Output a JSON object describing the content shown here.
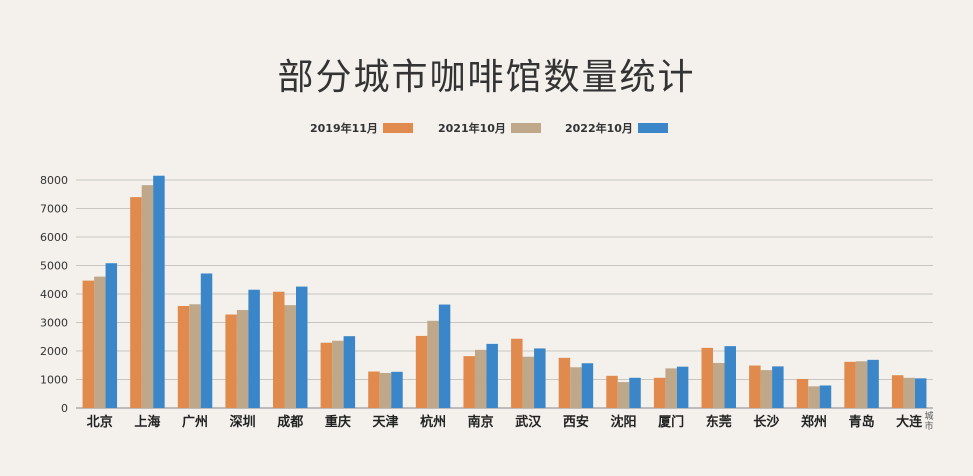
{
  "chart_data": {
    "type": "bar",
    "title": "部分城市咖啡馆数量统计",
    "xlabel": "城市",
    "ylabel": "",
    "ylim": [
      0,
      8000
    ],
    "yticks": [
      0,
      1000,
      2000,
      3000,
      4000,
      5000,
      6000,
      7000,
      8000
    ],
    "grid": true,
    "legend_position": "top-center",
    "categories": [
      "北京",
      "上海",
      "广州",
      "深圳",
      "成都",
      "重庆",
      "天津",
      "杭州",
      "南京",
      "武汉",
      "西安",
      "沈阳",
      "厦门",
      "东莞",
      "长沙",
      "郑州",
      "青岛",
      "大连"
    ],
    "series": [
      {
        "name": "2019年11月",
        "color": "#e08a4e",
        "values": [
          4470,
          7400,
          3580,
          3280,
          4080,
          2290,
          1280,
          2530,
          1820,
          2430,
          1760,
          1130,
          1060,
          2110,
          1490,
          1020,
          1620,
          1150
        ]
      },
      {
        "name": "2021年10月",
        "color": "#bfa88a",
        "values": [
          4610,
          7820,
          3640,
          3440,
          3610,
          2360,
          1230,
          3060,
          2040,
          1800,
          1430,
          910,
          1390,
          1580,
          1330,
          760,
          1640,
          1060
        ]
      },
      {
        "name": "2022年10月",
        "color": "#3a86c8",
        "values": [
          5080,
          8150,
          4720,
          4150,
          4260,
          2520,
          1270,
          3630,
          2250,
          2090,
          1570,
          1060,
          1450,
          2170,
          1460,
          790,
          1690,
          1040
        ]
      }
    ]
  }
}
